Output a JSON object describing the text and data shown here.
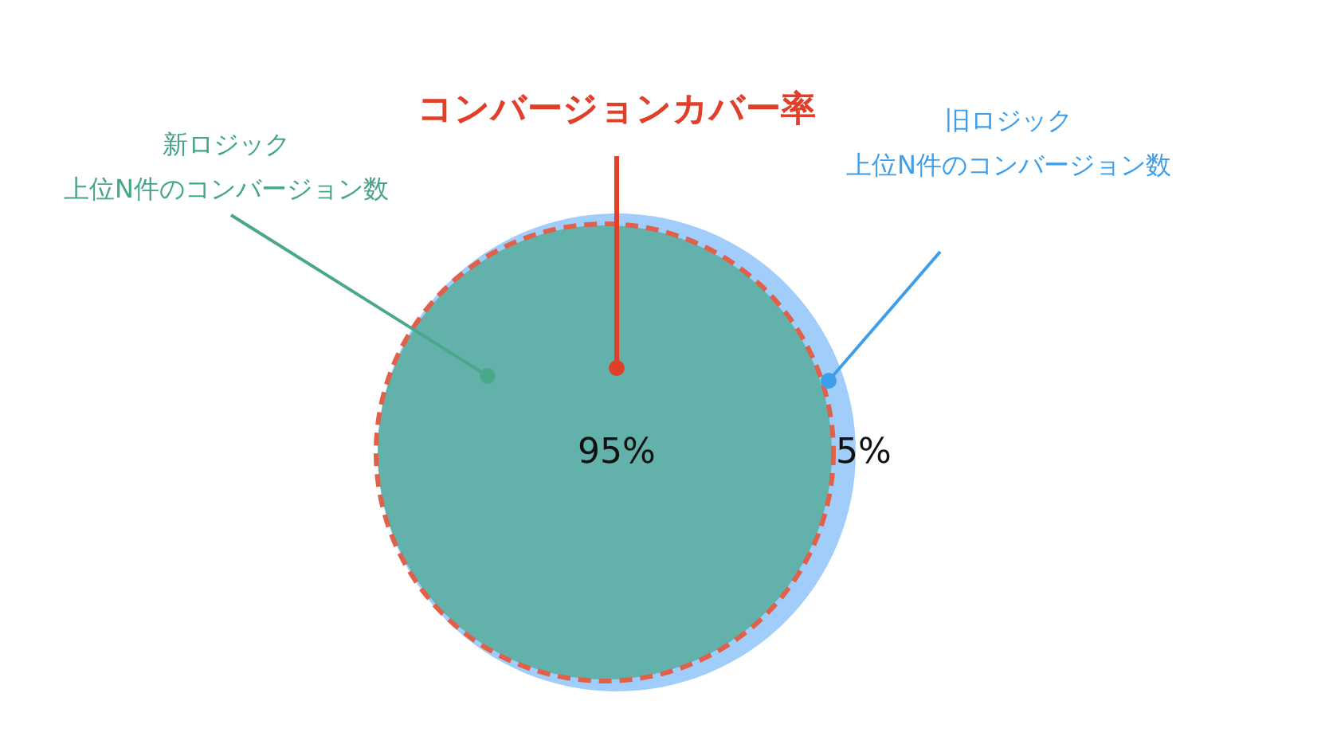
{
  "chart_data": {
    "type": "other",
    "title": "コンバージョンカバー率",
    "categories": [
      "新ロジック上位N件のコンバージョン数",
      "旧ロジック上位N件のコンバージョン数"
    ],
    "values": [
      95,
      5
    ],
    "colors": [
      "#62b2ab",
      "#a0cdfa"
    ],
    "value_labels": [
      "95%",
      "5%"
    ]
  }
}
